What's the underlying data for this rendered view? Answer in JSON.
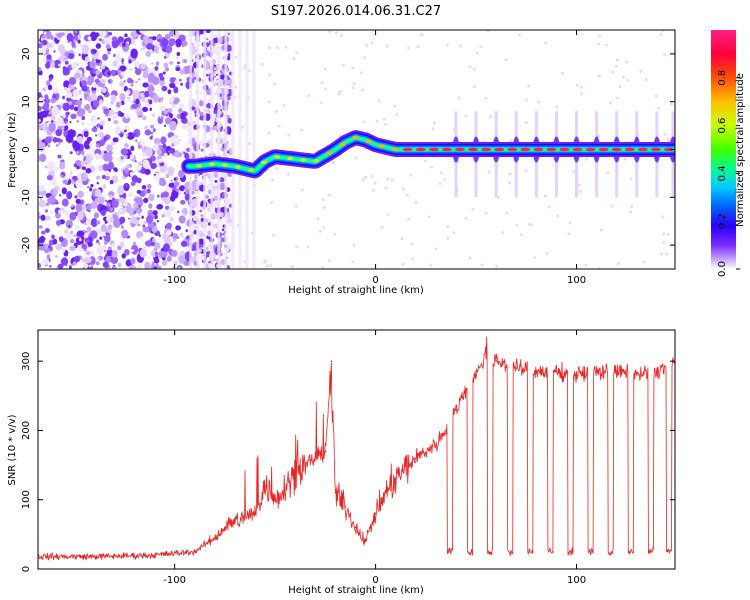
{
  "figure": {
    "title": "S197.2026.014.06.31.C27"
  },
  "colorbar": {
    "label": "Normalized spectral amplitude",
    "ticks": [
      0.0,
      0.2,
      0.4,
      0.6,
      0.8
    ],
    "tick_labels": [
      "0.0",
      "0.2",
      "0.4",
      "0.6",
      "0.8"
    ],
    "range": [
      0,
      1
    ],
    "gradient_colors": [
      "#ffffff",
      "#c8a6ff",
      "#7a2cff",
      "#2a00ff",
      "#0060ff",
      "#00c8ff",
      "#00ff90",
      "#40ff00",
      "#c8ff00",
      "#ffc000",
      "#ff5000",
      "#ff0040",
      "#ff2080"
    ]
  },
  "chart_data": [
    {
      "type": "heatmap",
      "title": "",
      "xlabel": "Height of straight line (km)",
      "ylabel": "Frequency (Hz)",
      "xlim": [
        -168,
        149
      ],
      "ylim": [
        -25,
        25
      ],
      "xticks": [
        -100,
        0,
        100
      ],
      "xtick_labels": [
        "-100",
        "0",
        "100"
      ],
      "yticks": [
        -20,
        -10,
        0,
        10,
        20
      ],
      "ytick_labels": [
        "-20",
        "-10",
        "0",
        "10",
        "20"
      ],
      "description_series": {
        "name": "peak frequency track",
        "x": [
          -90,
          -80,
          -70,
          -60,
          -55,
          -50,
          -40,
          -30,
          -20,
          -15,
          -10,
          -5,
          0,
          10,
          20,
          40,
          60,
          80,
          100,
          120,
          148
        ],
        "y": [
          -3.5,
          -3,
          -3.5,
          -4.5,
          -2.5,
          -1.5,
          -2,
          -2.5,
          0,
          1.5,
          2.5,
          2,
          1,
          0,
          0,
          0,
          0,
          0,
          0,
          0,
          0
        ]
      },
      "noise_region_x": [
        -168,
        -80
      ],
      "pulse_centers_x": [
        40,
        50,
        60,
        70,
        80,
        90,
        100,
        110,
        120,
        130,
        140,
        148
      ]
    },
    {
      "type": "line",
      "title": "",
      "xlabel": "Height of straight line (km)",
      "ylabel": "SNR (10 * v/v)",
      "xlim": [
        -168,
        149
      ],
      "ylim": [
        0,
        345
      ],
      "xticks": [
        -100,
        0,
        100
      ],
      "xtick_labels": [
        "-100",
        "0",
        "100"
      ],
      "yticks": [
        0,
        100,
        200,
        300
      ],
      "ytick_labels": [
        "0",
        "100",
        "200",
        "300"
      ],
      "series": [
        {
          "name": "SNR",
          "color": "#ee2222",
          "x": [
            -168,
            -140,
            -110,
            -90,
            -80,
            -75,
            -70,
            -60,
            -55,
            -50,
            -40,
            -35,
            -30,
            -25,
            -22,
            -20,
            -15,
            -10,
            -5,
            0,
            5,
            10,
            20,
            30,
            35,
            40,
            45,
            50,
            55,
            60,
            70,
            80,
            90,
            100,
            110,
            120,
            130,
            140,
            148
          ],
          "y": [
            18,
            18,
            20,
            25,
            45,
            60,
            70,
            80,
            120,
            100,
            140,
            150,
            160,
            170,
            300,
            110,
            90,
            60,
            40,
            80,
            110,
            130,
            160,
            180,
            200,
            230,
            260,
            280,
            310,
            300,
            290,
            285,
            285,
            280,
            285,
            285,
            280,
            285,
            300
          ]
        }
      ],
      "dropouts_x": [
        37,
        47,
        57,
        67,
        77,
        87,
        97,
        107,
        117,
        127,
        137,
        146
      ],
      "dropout_level": 25
    }
  ]
}
